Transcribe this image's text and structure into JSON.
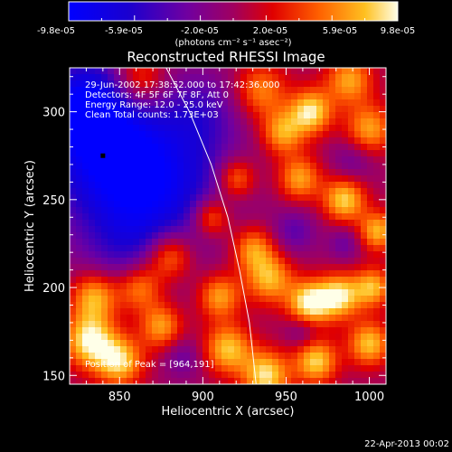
{
  "colorbar": {
    "ticks": [
      "-9.8e-05",
      "-5.9e-05",
      "-2.0e-05",
      "2.0e-05",
      "5.9e-05",
      "9.8e-05"
    ],
    "units": "(photons cm⁻² s⁻¹ asec⁻²)"
  },
  "info": {
    "time": "29-Jun-2002 17:38:52.000 to 17:42:36.000",
    "detectors": "Detectors: 4F 5F 6F 7F 8F, Att 0",
    "energy": "Energy Range: 12.0 - 25.0 keV",
    "clean": "Clean     Total counts: 1.73E+03",
    "peak": "Position of Peak = [964,191]"
  },
  "footer": {
    "timestamp": "22-Apr-2013 00:02"
  },
  "chart_data": {
    "type": "heatmap",
    "title": "Reconstructed RHESSI Image",
    "xlabel": "Heliocentric X (arcsec)",
    "ylabel": "Heliocentric Y (arcsec)",
    "xlim": [
      820,
      1010
    ],
    "ylim": [
      145,
      325
    ],
    "x_ticks": [
      850,
      900,
      950,
      1000
    ],
    "y_ticks": [
      150,
      200,
      250,
      300
    ],
    "colorbar_range": [
      -9.8e-05,
      9.8e-05
    ],
    "peak_position": [
      964,
      191
    ],
    "marker_position": [
      840,
      275
    ],
    "limb_curve": [
      [
        878,
        325
      ],
      [
        892,
        300
      ],
      [
        905,
        270
      ],
      [
        915,
        240
      ],
      [
        922,
        210
      ],
      [
        928,
        180
      ],
      [
        932,
        145
      ]
    ],
    "blobs": [
      {
        "x": 845,
        "y": 275,
        "value": -9.5e-05,
        "sigma": 28
      },
      {
        "x": 828,
        "y": 305,
        "value": -7e-05,
        "sigma": 18
      },
      {
        "x": 885,
        "y": 258,
        "value": -5e-05,
        "sigma": 26
      },
      {
        "x": 858,
        "y": 222,
        "value": -4e-05,
        "sigma": 22
      },
      {
        "x": 900,
        "y": 300,
        "value": -3.5e-05,
        "sigma": 16
      },
      {
        "x": 862,
        "y": 318,
        "value": 6e-05,
        "sigma": 11
      },
      {
        "x": 935,
        "y": 312,
        "value": 6e-05,
        "sigma": 11
      },
      {
        "x": 948,
        "y": 288,
        "value": 7e-05,
        "sigma": 9
      },
      {
        "x": 965,
        "y": 300,
        "value": 9e-05,
        "sigma": 9
      },
      {
        "x": 988,
        "y": 318,
        "value": 7e-05,
        "sigma": 10
      },
      {
        "x": 1000,
        "y": 290,
        "value": 7e-05,
        "sigma": 10
      },
      {
        "x": 920,
        "y": 262,
        "value": 6.5e-05,
        "sigma": 8
      },
      {
        "x": 905,
        "y": 240,
        "value": 7e-05,
        "sigma": 8
      },
      {
        "x": 958,
        "y": 262,
        "value": 7e-05,
        "sigma": 9
      },
      {
        "x": 985,
        "y": 250,
        "value": 8.5e-05,
        "sigma": 9
      },
      {
        "x": 1005,
        "y": 232,
        "value": 7.5e-05,
        "sigma": 8
      },
      {
        "x": 880,
        "y": 218,
        "value": 8e-05,
        "sigma": 10
      },
      {
        "x": 930,
        "y": 222,
        "value": 6.5e-05,
        "sigma": 9
      },
      {
        "x": 862,
        "y": 200,
        "value": 7.5e-05,
        "sigma": 10
      },
      {
        "x": 835,
        "y": 195,
        "value": 8e-05,
        "sigma": 10
      },
      {
        "x": 832,
        "y": 170,
        "value": 9.5e-05,
        "sigma": 11
      },
      {
        "x": 850,
        "y": 158,
        "value": 8.5e-05,
        "sigma": 10
      },
      {
        "x": 875,
        "y": 178,
        "value": 7e-05,
        "sigma": 9
      },
      {
        "x": 910,
        "y": 195,
        "value": 7e-05,
        "sigma": 9
      },
      {
        "x": 940,
        "y": 205,
        "value": 7.5e-05,
        "sigma": 10
      },
      {
        "x": 964,
        "y": 191,
        "value": 9.8e-05,
        "sigma": 9
      },
      {
        "x": 982,
        "y": 195,
        "value": 9e-05,
        "sigma": 9
      },
      {
        "x": 1002,
        "y": 200,
        "value": 7.5e-05,
        "sigma": 8
      },
      {
        "x": 915,
        "y": 165,
        "value": 8e-05,
        "sigma": 10
      },
      {
        "x": 938,
        "y": 150,
        "value": 9e-05,
        "sigma": 10
      },
      {
        "x": 968,
        "y": 158,
        "value": 8.5e-05,
        "sigma": 9
      },
      {
        "x": 1000,
        "y": 168,
        "value": 8e-05,
        "sigma": 9
      },
      {
        "x": 955,
        "y": 232,
        "value": -3.5e-05,
        "sigma": 9
      },
      {
        "x": 990,
        "y": 272,
        "value": -3e-05,
        "sigma": 9
      },
      {
        "x": 960,
        "y": 175,
        "value": -3e-05,
        "sigma": 7
      },
      {
        "x": 888,
        "y": 160,
        "value": -3e-05,
        "sigma": 8
      },
      {
        "x": 985,
        "y": 225,
        "value": -3e-05,
        "sigma": 7
      }
    ]
  }
}
